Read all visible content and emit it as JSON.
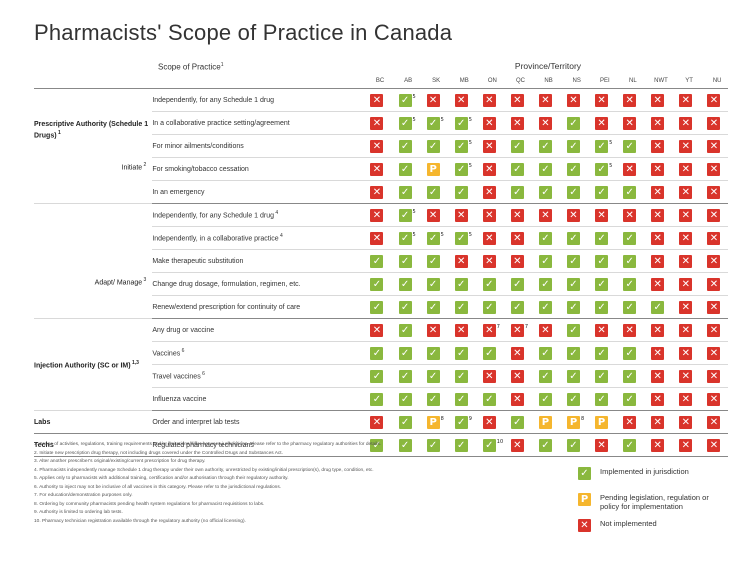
{
  "title": "Pharmacists' Scope of Practice in Canada",
  "header": {
    "scope_label": "Scope of Practice",
    "scope_ref": "1",
    "province_label": "Province/Territory"
  },
  "jurisdictions": [
    "BC",
    "AB",
    "SK",
    "MB",
    "ON",
    "QC",
    "NB",
    "NS",
    "PEI",
    "NL",
    "NWT",
    "YT",
    "NU"
  ],
  "sections": [
    {
      "category": "Prescriptive Authority (Schedule 1 Drugs)",
      "category_ref": "1",
      "rows": [
        {
          "label": "Independently, for any Schedule 1 drug",
          "ref": "",
          "marks": [
            "N",
            "Y",
            "N",
            "N",
            "N",
            "N",
            "N",
            "N",
            "N",
            "N",
            "N",
            "N",
            "N"
          ],
          "notes": {
            "1": "5"
          }
        },
        {
          "label": "In a collaborative practice setting/agreement",
          "ref": "",
          "marks": [
            "N",
            "Y",
            "Y",
            "Y",
            "N",
            "N",
            "N",
            "Y",
            "N",
            "N",
            "N",
            "N",
            "N"
          ],
          "notes": {
            "1": "5",
            "2": "5",
            "3": "5"
          }
        },
        {
          "label": "For minor ailments/conditions",
          "ref": "",
          "row_label": "Initiate",
          "row_label_ref": "2",
          "marks": [
            "N",
            "Y",
            "Y",
            "Y",
            "N",
            "Y",
            "Y",
            "Y",
            "Y",
            "Y",
            "N",
            "N",
            "N"
          ],
          "notes": {
            "3": "5",
            "8": "5"
          }
        },
        {
          "label": "For smoking/tobacco cessation",
          "ref": "",
          "marks": [
            "N",
            "Y",
            "P",
            "Y",
            "N",
            "Y",
            "Y",
            "Y",
            "Y",
            "N",
            "N",
            "N",
            "N"
          ],
          "notes": {
            "3": "5",
            "8": "5"
          }
        },
        {
          "label": "In an emergency",
          "ref": "",
          "marks": [
            "N",
            "Y",
            "Y",
            "Y",
            "N",
            "Y",
            "Y",
            "Y",
            "Y",
            "Y",
            "N",
            "N",
            "N"
          ],
          "notes": {}
        }
      ]
    },
    {
      "category": "",
      "category_ref": "",
      "rows": [
        {
          "label": "Independently, for any Schedule 1 drug",
          "ref": "4",
          "marks": [
            "N",
            "Y",
            "N",
            "N",
            "N",
            "N",
            "N",
            "N",
            "N",
            "N",
            "N",
            "N",
            "N"
          ],
          "notes": {
            "1": "5"
          }
        },
        {
          "label": "Independently, in a collaborative practice",
          "ref": "4",
          "marks": [
            "N",
            "Y",
            "Y",
            "Y",
            "N",
            "N",
            "Y",
            "Y",
            "Y",
            "Y",
            "N",
            "N",
            "N"
          ],
          "notes": {
            "1": "5",
            "2": "5",
            "3": "5"
          }
        },
        {
          "label": "Make therapeutic substitution",
          "ref": "",
          "row_label": "Adapt/ Manage",
          "row_label_ref": "3",
          "marks": [
            "Y",
            "Y",
            "Y",
            "N",
            "N",
            "N",
            "Y",
            "Y",
            "Y",
            "Y",
            "N",
            "N",
            "N"
          ],
          "notes": {}
        },
        {
          "label": "Change drug dosage, formulation, regimen, etc.",
          "ref": "",
          "marks": [
            "Y",
            "Y",
            "Y",
            "Y",
            "Y",
            "Y",
            "Y",
            "Y",
            "Y",
            "Y",
            "N",
            "N",
            "N"
          ],
          "notes": {}
        },
        {
          "label": "Renew/extend prescription for continuity of care",
          "ref": "",
          "marks": [
            "Y",
            "Y",
            "Y",
            "Y",
            "Y",
            "Y",
            "Y",
            "Y",
            "Y",
            "Y",
            "Y",
            "N",
            "N"
          ],
          "notes": {}
        }
      ]
    },
    {
      "category": "Injection Authority (SC or IM)",
      "category_ref": "1,3",
      "rows": [
        {
          "label": "Any drug or vaccine",
          "ref": "",
          "marks": [
            "N",
            "Y",
            "N",
            "N",
            "N",
            "N",
            "N",
            "Y",
            "N",
            "N",
            "N",
            "N",
            "N"
          ],
          "notes": {
            "4": "7",
            "5": "7"
          }
        },
        {
          "label": "Vaccines",
          "ref": "6",
          "marks": [
            "Y",
            "Y",
            "Y",
            "Y",
            "Y",
            "N",
            "Y",
            "Y",
            "Y",
            "Y",
            "N",
            "N",
            "N"
          ],
          "notes": {}
        },
        {
          "label": "Travel vaccines",
          "ref": "6",
          "marks": [
            "Y",
            "Y",
            "Y",
            "Y",
            "N",
            "N",
            "Y",
            "Y",
            "Y",
            "Y",
            "N",
            "N",
            "N"
          ],
          "notes": {}
        },
        {
          "label": "Influenza vaccine",
          "ref": "",
          "marks": [
            "Y",
            "Y",
            "Y",
            "Y",
            "Y",
            "N",
            "Y",
            "Y",
            "Y",
            "Y",
            "N",
            "N",
            "N"
          ],
          "notes": {}
        }
      ]
    },
    {
      "category": "Labs",
      "category_ref": "",
      "rows": [
        {
          "label": "Order and interpret lab tests",
          "ref": "",
          "marks": [
            "N",
            "Y",
            "P",
            "Y",
            "N",
            "Y",
            "P",
            "P",
            "P",
            "N",
            "N",
            "N",
            "N"
          ],
          "notes": {
            "2": "8",
            "3": "9",
            "7": "8"
          }
        }
      ]
    },
    {
      "category": "Techs",
      "category_ref": "",
      "rows": [
        {
          "label": "Regulated pharmacy technicians",
          "ref": "",
          "marks": [
            "Y",
            "Y",
            "Y",
            "Y",
            "Y",
            "N",
            "Y",
            "Y",
            "N",
            "Y",
            "N",
            "N",
            "N"
          ],
          "notes": {
            "4": "10"
          }
        }
      ]
    }
  ],
  "footnotes": [
    "1. Scope of activities, regulations, training requirements and/or limitations differ between jurisdictions. Please refer to the pharmacy regulatory authorities for details.",
    "2. Initiate new prescription drug therapy, not including drugs covered under the Controlled Drugs and Substances Act.",
    "3. Alter another prescriber's original/existing/current prescription for drug therapy.",
    "4. Pharmacists independently manage Schedule 1 drug therapy under their own authority, unrestricted by existing/initial prescription(s), drug type, condition, etc.",
    "5. Applies only to pharmacists with additional training, certification and/or authorisation through their regulatory authority.",
    "6. Authority to inject may not be inclusive of all vaccines in this category. Please refer to the jurisdictional regulations.",
    "7. For education/demonstration purposes only.",
    "8. Ordering by community pharmacists pending health system regulations for pharmacist requisitions to labs.",
    "9. Authority is limited to ordering lab tests.",
    "10. Pharmacy technician registration available through the regulatory authority (no official licensing)."
  ],
  "legend": [
    {
      "symbol": "Y",
      "label": "Implemented in jurisdiction",
      "color": "#8ab83e"
    },
    {
      "symbol": "P",
      "label": "Pending legislation, regulation or policy for implementation",
      "color": "#f5b62e"
    },
    {
      "symbol": "N",
      "label": "Not implemented",
      "color": "#d9342b"
    }
  ],
  "glyphs": {
    "Y": "✓",
    "N": "✕",
    "P": "P"
  }
}
